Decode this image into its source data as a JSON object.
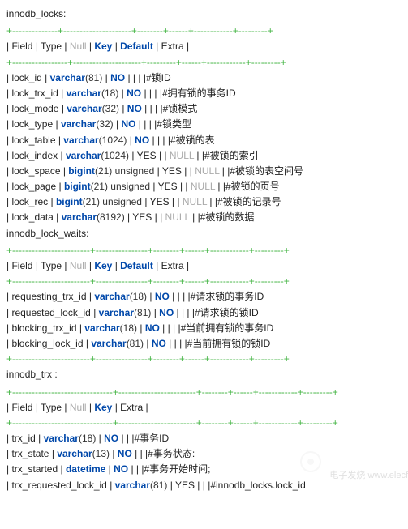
{
  "table1": {
    "title": "innodb_locks:",
    "sep_top": "+--------------+---------------------+--------+------+------------+---------+",
    "sep_mid": "+-----------------+---------------------+---------+------+------------+---------+",
    "header": {
      "field": "Field",
      "type": "Type",
      "null_lbl": "Null",
      "key": "Key",
      "default": "Default",
      "extra": "Extra"
    },
    "rows": [
      {
        "f": "lock_id",
        "type": "varchar",
        "len": "(81)",
        "null": "NO",
        "nullval": "",
        "c": "|#锁ID",
        "pad1": "        ",
        "pad2": "     "
      },
      {
        "f": "lock_trx_id",
        "type": "varchar",
        "len": "(18)",
        "null": "NO",
        "nullval": "",
        "c": "|#拥有锁的事务ID",
        "pad1": "       ",
        "pad2": "       "
      },
      {
        "f": "lock_mode",
        "type": "varchar",
        "len": "(32)",
        "null": "NO",
        "nullval": "",
        "c": "|#锁模式",
        "pad1": "       ",
        "pad2": "     "
      },
      {
        "f": "lock_type",
        "type": "varchar",
        "len": "(32)",
        "null": "NO",
        "nullval": "",
        "c": "|#锁类型",
        "pad1": "       ",
        "pad2": "     "
      },
      {
        "f": "lock_table",
        "type": "varchar",
        "len": "(1024)",
        "null": "NO",
        "nullval": "",
        "c": "|#被锁的表",
        "pad1": "     ",
        "pad2": "     "
      },
      {
        "f": "lock_index",
        "type": "varchar",
        "len": "(1024)",
        "null": "YES",
        "nullval": "NULL",
        "c": "|#被锁的索引",
        "pad1": "   ",
        "pad2": "   "
      },
      {
        "f": "lock_space",
        "type": "bigint",
        "len": "(21) unsigned",
        "null": "YES",
        "nullval": "NULL",
        "c": "|#被锁的表空间号",
        "pad1": " ",
        "pad2": "   "
      },
      {
        "f": "lock_page",
        "type": "bigint",
        "len": "(21) unsigned",
        "null": "YES",
        "nullval": "NULL",
        "c": "|#被锁的页号",
        "pad1": " ",
        "pad2": "   "
      },
      {
        "f": "lock_rec",
        "type": "bigint",
        "len": "(21) unsigned",
        "null": "YES",
        "nullval": "NULL",
        "c": "|#被锁的记录号",
        "pad1": " ",
        "pad2": "   "
      },
      {
        "f": "lock_data",
        "type": "varchar",
        "len": "(8192)",
        "null": "YES",
        "nullval": "NULL",
        "c": "|#被锁的数据",
        "pad1": "   ",
        "pad2": "   "
      }
    ]
  },
  "table2": {
    "title": "innodb_lock_waits:",
    "sep_top": "+------------------------+----------------+--------+------+------------+---------+",
    "sep_mid": "+------------------------+----------------+--------+------+------------+---------+",
    "header": {
      "field": "Field",
      "type": "Type",
      "null_lbl": "Null",
      "key": "Key",
      "default": "Default",
      "extra": "Extra"
    },
    "rows": [
      {
        "f": "requesting_trx_id",
        "type": "varchar",
        "len": "(18)",
        "null": "NO",
        "c": "|#请求锁的事务ID"
      },
      {
        "f": "requested_lock_id",
        "type": "varchar",
        "len": "(81)",
        "null": "NO",
        "c": "|#请求锁的锁ID"
      },
      {
        "f": "blocking_trx_id",
        "type": "varchar",
        "len": "(18)",
        "null": "NO",
        "c": "|#当前拥有锁的事务ID"
      },
      {
        "f": "blocking_lock_id",
        "type": "varchar",
        "len": "(81)",
        "null": "NO",
        "c": "|#当前拥有锁的锁ID"
      }
    ]
  },
  "table3": {
    "title": "innodb_trx :",
    "sep_top": "+-------------------------------+------------------------+--------+------+------------+---------+",
    "sep_mid": "+-------------------------------+------------------------+--------+------+------------+---------+",
    "header": {
      "field": "Field",
      "type": "Type",
      "null_lbl": "Null",
      "key": "Key",
      "extra": "Extra"
    },
    "rows": [
      {
        "f": "trx_id",
        "type": "varchar",
        "len": "(18)",
        "null": "NO",
        "c": "|#事务ID"
      },
      {
        "f": "trx_state",
        "type": "varchar",
        "len": "(13)",
        "null": "NO",
        "c": "|#事务状态:"
      },
      {
        "f": "trx_started",
        "type": "datetime",
        "len": "",
        "null": "NO",
        "c": "|#事务开始时间;"
      },
      {
        "f": "trx_requested_lock_id",
        "type": "varchar",
        "len": "(81)",
        "null": "YES",
        "c": "|#innodb_locks.lock_id"
      }
    ]
  },
  "watermark": "电子发烧\nwww.elecf",
  "colors": {
    "sep": "#44b544",
    "kw": "#0048aa",
    "null": "#aaaaaa",
    "text": "#222222"
  }
}
